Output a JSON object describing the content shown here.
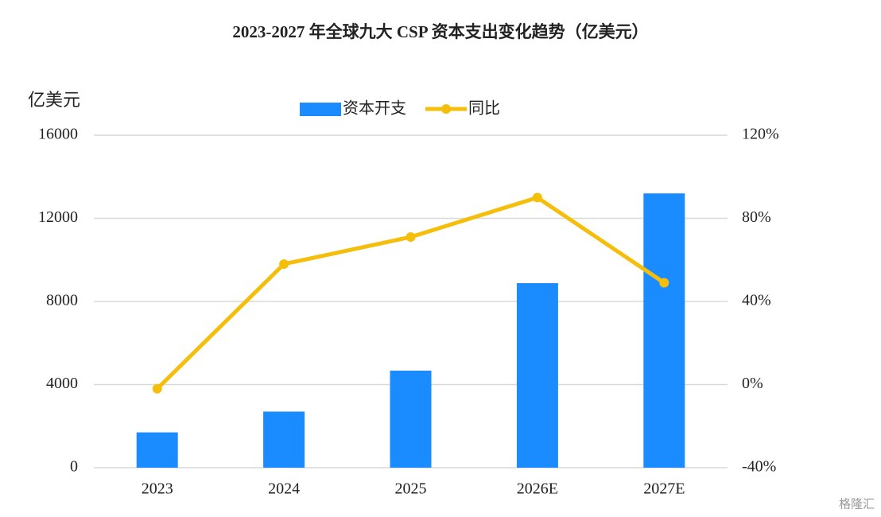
{
  "chart_data": {
    "type": "bar_line",
    "title": "2023-2027 年全球九大 CSP 资本支出变化趋势（亿美元）",
    "y_axis_label": "亿美元",
    "watermark": "格隆汇",
    "categories": [
      "2023",
      "2024",
      "2025",
      "2026E",
      "2027E"
    ],
    "series": [
      {
        "name": "资本开支",
        "type": "bar",
        "color": "#1a8cff",
        "values": [
          1700,
          2700,
          4670,
          8880,
          13200
        ]
      },
      {
        "name": "同比",
        "type": "line",
        "axis": "y2",
        "color": "#f5be0b",
        "values": [
          -2,
          58,
          71,
          90,
          49
        ]
      }
    ],
    "ylim": [
      0,
      16000
    ],
    "yticks": [
      0,
      4000,
      8000,
      12000,
      16000
    ],
    "y2lim": [
      -40,
      120
    ],
    "y2ticks": [
      {
        "value": -40,
        "label": "-40%"
      },
      {
        "value": 0,
        "label": "0%"
      },
      {
        "value": 40,
        "label": "40%"
      },
      {
        "value": 80,
        "label": "80%"
      },
      {
        "value": 120,
        "label": "120%"
      }
    ],
    "grid": true,
    "legend": "top"
  }
}
